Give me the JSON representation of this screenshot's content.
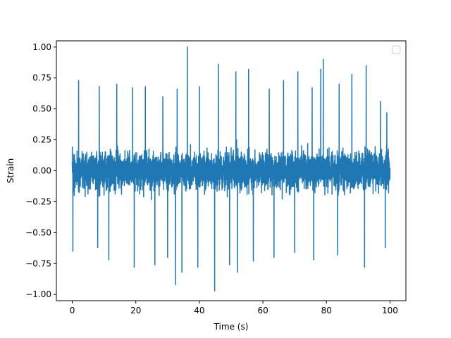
{
  "chart_data": {
    "type": "line",
    "title": "",
    "xlabel": "Time (s)",
    "ylabel": "Strain",
    "xlim": [
      -5,
      105
    ],
    "ylim": [
      -1.05,
      1.05
    ],
    "x_ticks": [
      {
        "value": 0,
        "label": "0"
      },
      {
        "value": 20,
        "label": "20"
      },
      {
        "value": 40,
        "label": "40"
      },
      {
        "value": 60,
        "label": "60"
      },
      {
        "value": 80,
        "label": "80"
      },
      {
        "value": 100,
        "label": "100"
      }
    ],
    "y_ticks": [
      {
        "value": -1.0,
        "label": "−1.00"
      },
      {
        "value": -0.75,
        "label": "−0.75"
      },
      {
        "value": -0.5,
        "label": "−0.50"
      },
      {
        "value": -0.25,
        "label": "−0.25"
      },
      {
        "value": 0.0,
        "label": "0.00"
      },
      {
        "value": 0.25,
        "label": "0.25"
      },
      {
        "value": 0.5,
        "label": "0.50"
      },
      {
        "value": 0.75,
        "label": "0.75"
      },
      {
        "value": 1.0,
        "label": "1.00"
      }
    ],
    "grid": false,
    "legend": {
      "location": "top-right",
      "entries": []
    },
    "series": [
      {
        "color": "#1f77b4",
        "x_range": [
          0,
          100
        ],
        "sample_count": 4000,
        "envelope": {
          "typical_peak": 0.5,
          "typical_trough": -0.5,
          "max": 1.0,
          "min": -0.97
        },
        "peaks": [
          {
            "x": 0.2,
            "y": 0.57
          },
          {
            "x": 2.0,
            "y": 0.73
          },
          {
            "x": 8.5,
            "y": 0.68
          },
          {
            "x": 14.0,
            "y": 0.7
          },
          {
            "x": 19.0,
            "y": 0.67
          },
          {
            "x": 23.0,
            "y": 0.68
          },
          {
            "x": 28.5,
            "y": 0.6
          },
          {
            "x": 33.0,
            "y": 0.66
          },
          {
            "x": 36.2,
            "y": 1.0
          },
          {
            "x": 40.0,
            "y": 0.68
          },
          {
            "x": 46.0,
            "y": 0.86
          },
          {
            "x": 51.5,
            "y": 0.8
          },
          {
            "x": 55.5,
            "y": 0.82
          },
          {
            "x": 62.0,
            "y": 0.66
          },
          {
            "x": 66.5,
            "y": 0.73
          },
          {
            "x": 71.0,
            "y": 0.8
          },
          {
            "x": 75.5,
            "y": 0.67
          },
          {
            "x": 78.2,
            "y": 0.82
          },
          {
            "x": 79.0,
            "y": 0.9
          },
          {
            "x": 84.0,
            "y": 0.7
          },
          {
            "x": 88.0,
            "y": 0.78
          },
          {
            "x": 92.5,
            "y": 0.85
          },
          {
            "x": 97.0,
            "y": 0.56
          },
          {
            "x": 99.0,
            "y": 0.47
          }
        ],
        "troughs": [
          {
            "x": 0.2,
            "y": -0.65
          },
          {
            "x": 8.0,
            "y": -0.62
          },
          {
            "x": 11.5,
            "y": -0.72
          },
          {
            "x": 19.5,
            "y": -0.78
          },
          {
            "x": 26.0,
            "y": -0.76
          },
          {
            "x": 30.0,
            "y": -0.7
          },
          {
            "x": 32.5,
            "y": -0.92
          },
          {
            "x": 34.5,
            "y": -0.82
          },
          {
            "x": 39.5,
            "y": -0.78
          },
          {
            "x": 44.8,
            "y": -0.97
          },
          {
            "x": 49.5,
            "y": -0.76
          },
          {
            "x": 52.0,
            "y": -0.82
          },
          {
            "x": 57.0,
            "y": -0.73
          },
          {
            "x": 63.5,
            "y": -0.7
          },
          {
            "x": 70.0,
            "y": -0.66
          },
          {
            "x": 76.0,
            "y": -0.72
          },
          {
            "x": 83.5,
            "y": -0.68
          },
          {
            "x": 92.0,
            "y": -0.78
          },
          {
            "x": 98.5,
            "y": -0.62
          }
        ]
      }
    ]
  }
}
